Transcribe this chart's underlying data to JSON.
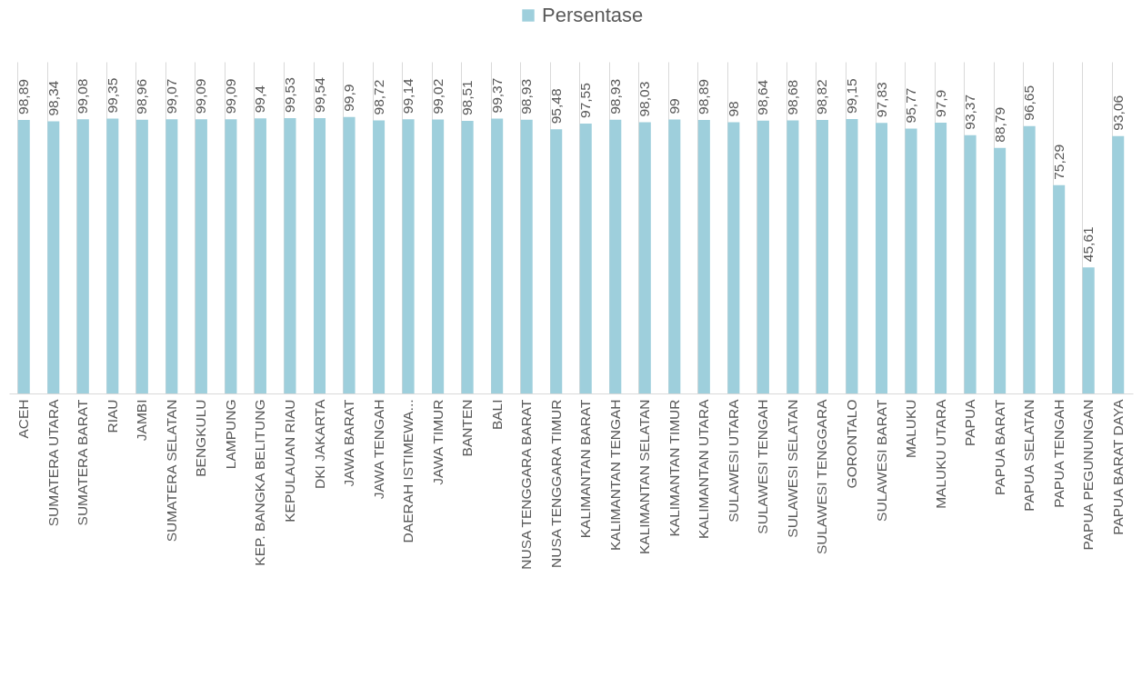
{
  "chart_data": {
    "type": "bar",
    "legend": "top",
    "grid": "x",
    "categories": [
      "ACEH",
      "SUMATERA UTARA",
      "SUMATERA BARAT",
      "RIAU",
      "JAMBI",
      "SUMATERA SELATAN",
      "BENGKULU",
      "LAMPUNG",
      "KEP. BANGKA BELITUNG",
      "KEPULAUAN RIAU",
      "DKI JAKARTA",
      "JAWA BARAT",
      "JAWA TENGAH",
      "DAERAH ISTIMEWA...",
      "JAWA TIMUR",
      "BANTEN",
      "BALI",
      "NUSA TENGGARA BARAT",
      "NUSA TENGGARA TIMUR",
      "KALIMANTAN BARAT",
      "KALIMANTAN TENGAH",
      "KALIMANTAN SELATAN",
      "KALIMANTAN TIMUR",
      "KALIMANTAN UTARA",
      "SULAWESI UTARA",
      "SULAWESI TENGAH",
      "SULAWESI SELATAN",
      "SULAWESI TENGGARA",
      "GORONTALO",
      "SULAWESI BARAT",
      "MALUKU",
      "MALUKU UTARA",
      "PAPUA",
      "PAPUA BARAT",
      "PAPUA SELATAN",
      "PAPUA TENGAH",
      "PAPUA PEGUNUNGAN",
      "PAPUA BARAT DAYA"
    ],
    "series": [
      {
        "name": "Persentase",
        "color": "#9ecfdc",
        "values": [
          98.89,
          98.34,
          99.08,
          99.35,
          98.96,
          99.07,
          99.09,
          99.09,
          99.4,
          99.53,
          99.54,
          99.9,
          98.72,
          99.14,
          99.02,
          98.51,
          99.37,
          98.93,
          95.48,
          97.55,
          98.93,
          98.03,
          99,
          98.89,
          98,
          98.64,
          98.68,
          98.82,
          99.15,
          97.83,
          95.77,
          97.9,
          93.37,
          88.79,
          96.65,
          75.29,
          45.61,
          93.06
        ],
        "value_labels": [
          "98,89",
          "98,34",
          "99,08",
          "99,35",
          "98,96",
          "99,07",
          "99,09",
          "99,09",
          "99,4",
          "99,53",
          "99,54",
          "99,9",
          "98,72",
          "99,14",
          "99,02",
          "98,51",
          "99,37",
          "98,93",
          "95,48",
          "97,55",
          "98,93",
          "98,03",
          "99",
          "98,89",
          "98",
          "98,64",
          "98,68",
          "98,82",
          "99,15",
          "97,83",
          "95,77",
          "97,9",
          "93,37",
          "88,79",
          "96,65",
          "75,29",
          "45,61",
          "93,06"
        ]
      }
    ]
  }
}
